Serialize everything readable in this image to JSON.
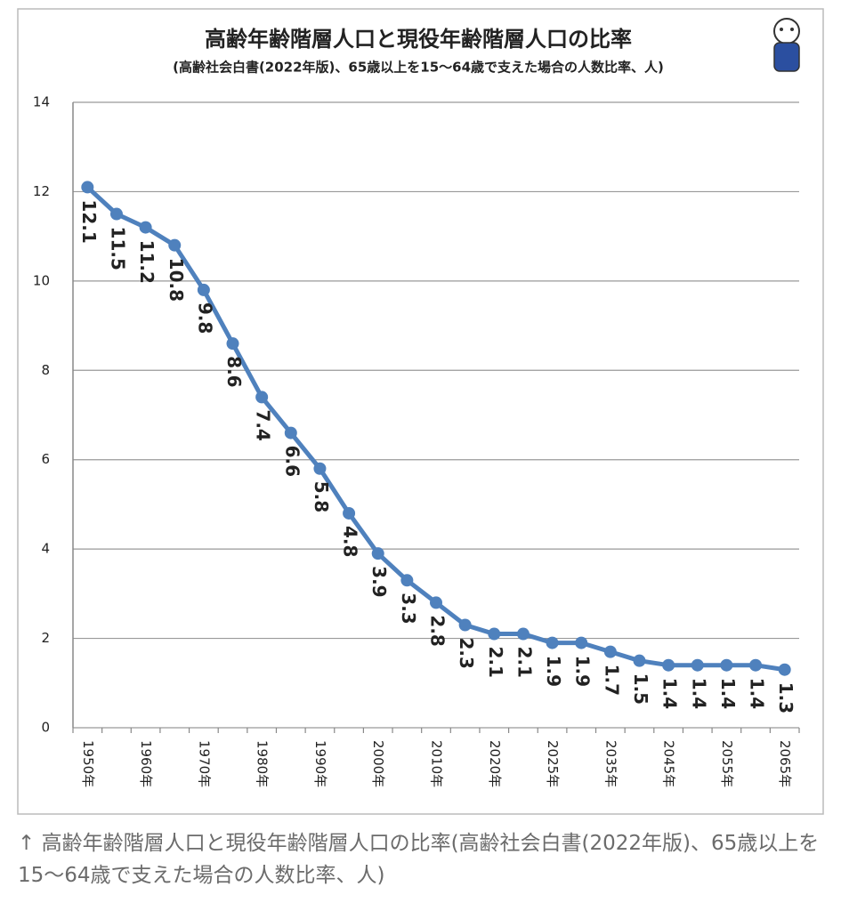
{
  "chart_data": {
    "type": "line",
    "title": "高齢年齢階層人口と現役年齢階層人口の比率",
    "subtitle": "(高齢社会白書(2022年版)、65歳以上を15〜64歳で支えた場合の人数比率、人)",
    "categories": [
      "1950年",
      null,
      "1960年",
      null,
      "1970年",
      null,
      "1980年",
      null,
      "1990年",
      null,
      "2000年",
      null,
      "2010年",
      null,
      "2020年",
      null,
      "2025年",
      null,
      "2035年",
      null,
      "2045年",
      null,
      "2055年",
      null,
      "2065年"
    ],
    "series": [
      {
        "name": "比率",
        "color": "#4f81bd",
        "values": [
          12.1,
          11.5,
          11.2,
          10.8,
          9.8,
          8.6,
          7.4,
          6.6,
          5.8,
          4.8,
          3.9,
          3.3,
          2.8,
          2.3,
          2.1,
          2.1,
          1.9,
          1.9,
          1.7,
          1.5,
          1.4,
          1.4,
          1.4,
          1.4,
          1.3
        ]
      }
    ],
    "ylim": [
      0,
      14
    ],
    "yticks": [
      0,
      2,
      4,
      6,
      8,
      10,
      12,
      14
    ],
    "grid": true
  },
  "caption": "↑ 高齢年齢階層人口と現役年齢階層人口の比率(高齢社会白書(2022年版)、65歳以上を15〜64歳で支えた場合の人数比率、人)"
}
